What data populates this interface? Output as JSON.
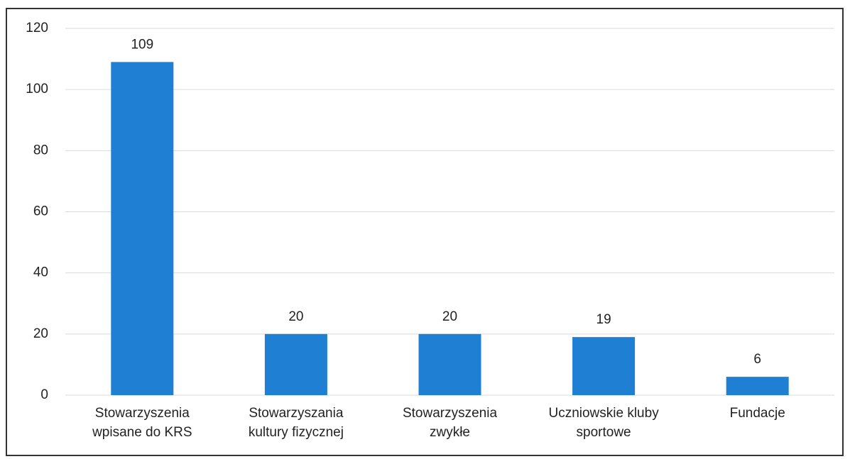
{
  "chart_data": {
    "type": "bar",
    "categories": [
      "Stowarzyszenia wpisane do KRS",
      "Stowarzyszania kultury fizycznej",
      "Stowarzyszenia zwykłe",
      "Uczniowskie kluby sportowe",
      "Fundacje"
    ],
    "values": [
      109,
      20,
      20,
      19,
      6
    ],
    "color": "#1f7fd2",
    "ylim": [
      0,
      120
    ],
    "yticks": [
      0,
      20,
      40,
      60,
      80,
      100,
      120
    ],
    "grid": true
  }
}
